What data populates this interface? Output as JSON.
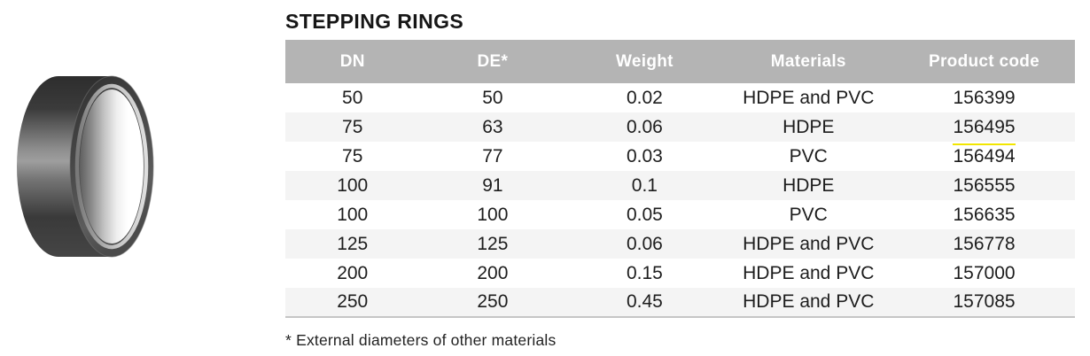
{
  "page": {
    "title": "STEPPING RINGS",
    "footnote": "* External diameters of other materials"
  },
  "product_image": {
    "name": "stepping-ring-photo",
    "description": "dark grey stepping ring, angled view"
  },
  "table": {
    "columns": [
      "DN",
      "DE*",
      "Weight",
      "Materials",
      "Product code"
    ],
    "rows": [
      [
        "50",
        "50",
        "0.02",
        "HDPE and PVC",
        "156399"
      ],
      [
        "75",
        "63",
        "0.06",
        "HDPE",
        "156495"
      ],
      [
        "75",
        "77",
        "0.03",
        "PVC",
        "156494"
      ],
      [
        "100",
        "91",
        "0.1",
        "HDPE",
        "156555"
      ],
      [
        "100",
        "100",
        "0.05",
        "PVC",
        "156635"
      ],
      [
        "125",
        "125",
        "0.06",
        "HDPE and PVC",
        "156778"
      ],
      [
        "200",
        "200",
        "0.15",
        "HDPE and PVC",
        "157000"
      ],
      [
        "250",
        "250",
        "0.45",
        "HDPE and PVC",
        "157085"
      ]
    ],
    "highlighted_product_code": "156494"
  },
  "colors": {
    "header_bg": "#b4b4b4",
    "header_text": "#ffffff",
    "stripe_bg": "#f4f4f4",
    "text": "#1d1d1d",
    "highlight_line": "#f2e600",
    "table_bottom_border": "#c6c6c6"
  }
}
